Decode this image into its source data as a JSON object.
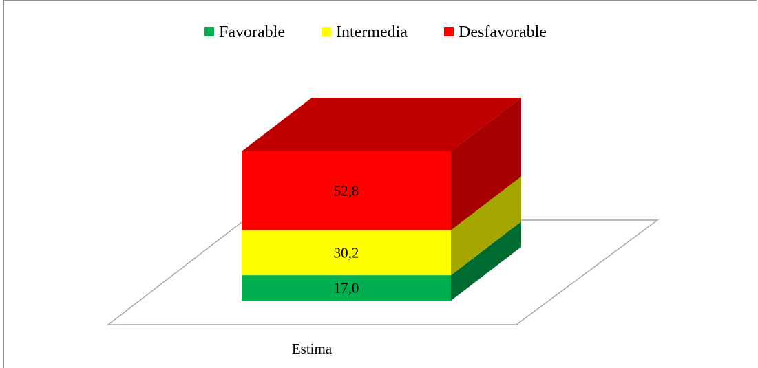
{
  "chart_data": {
    "type": "bar",
    "stacked": true,
    "three_d": true,
    "title": "",
    "xlabel": "",
    "ylabel": "",
    "categories": [
      "Estima"
    ],
    "ylim": [
      0,
      100
    ],
    "grid": false,
    "legend_position": "top",
    "series": [
      {
        "name": "Favorable",
        "values": [
          17.0
        ],
        "label": "17,0",
        "color": "#00b050",
        "side": "#006b31",
        "top": "#00b050"
      },
      {
        "name": "Intermedia",
        "values": [
          30.2
        ],
        "label": "30,2",
        "color": "#ffff00",
        "side": "#a6a600",
        "top": "#ffff00"
      },
      {
        "name": "Desfavorable",
        "values": [
          52.8
        ],
        "label": "52,8",
        "color": "#ff0000",
        "side": "#a60000",
        "top": "#c00000"
      }
    ]
  }
}
